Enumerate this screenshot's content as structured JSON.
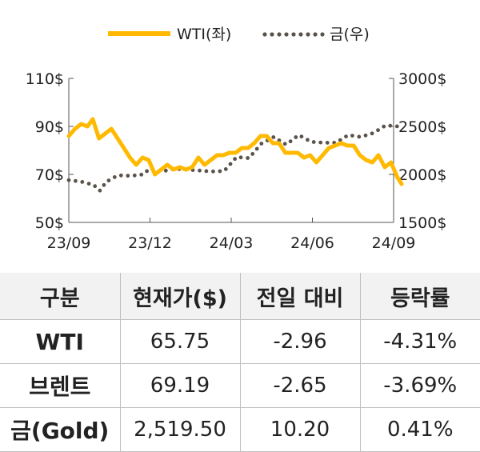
{
  "chart_data": {
    "type": "line",
    "x_ticks": [
      "23/09",
      "23/12",
      "24/03",
      "24/06",
      "24/09"
    ],
    "y_left_ticks": [
      "110$",
      "90$",
      "70$",
      "50$"
    ],
    "y_right_ticks": [
      "3000$",
      "2500$",
      "2000$",
      "1500$"
    ],
    "y_left_range": [
      50,
      110
    ],
    "y_right_range": [
      1500,
      3000
    ],
    "x_range": [
      "2023-09",
      "2024-09"
    ],
    "legend_position": "top-center",
    "series": [
      {
        "name": "WTI(좌)",
        "axis": "left",
        "style": "solid",
        "color": "#FFB900",
        "points": [
          [
            "2023-09-01",
            86
          ],
          [
            "2023-09-08",
            89
          ],
          [
            "2023-09-15",
            91
          ],
          [
            "2023-09-22",
            90
          ],
          [
            "2023-09-28",
            93
          ],
          [
            "2023-10-05",
            85
          ],
          [
            "2023-10-12",
            87
          ],
          [
            "2023-10-19",
            89
          ],
          [
            "2023-10-26",
            85
          ],
          [
            "2023-11-02",
            81
          ],
          [
            "2023-11-09",
            77
          ],
          [
            "2023-11-16",
            74
          ],
          [
            "2023-11-23",
            77
          ],
          [
            "2023-11-30",
            76
          ],
          [
            "2023-12-07",
            70
          ],
          [
            "2023-12-14",
            72
          ],
          [
            "2023-12-21",
            74
          ],
          [
            "2023-12-28",
            72
          ],
          [
            "2024-01-04",
            73
          ],
          [
            "2024-01-11",
            72
          ],
          [
            "2024-01-18",
            73
          ],
          [
            "2024-01-25",
            77
          ],
          [
            "2024-02-01",
            74
          ],
          [
            "2024-02-08",
            76
          ],
          [
            "2024-02-15",
            78
          ],
          [
            "2024-02-22",
            78
          ],
          [
            "2024-02-29",
            79
          ],
          [
            "2024-03-07",
            79
          ],
          [
            "2024-03-14",
            81
          ],
          [
            "2024-03-21",
            81
          ],
          [
            "2024-03-28",
            83
          ],
          [
            "2024-04-04",
            86
          ],
          [
            "2024-04-11",
            86
          ],
          [
            "2024-04-18",
            83
          ],
          [
            "2024-04-25",
            83
          ],
          [
            "2024-05-02",
            79
          ],
          [
            "2024-05-09",
            79
          ],
          [
            "2024-05-16",
            79
          ],
          [
            "2024-05-23",
            77
          ],
          [
            "2024-05-30",
            78
          ],
          [
            "2024-06-06",
            75
          ],
          [
            "2024-06-13",
            78
          ],
          [
            "2024-06-20",
            81
          ],
          [
            "2024-06-27",
            82
          ],
          [
            "2024-07-04",
            83
          ],
          [
            "2024-07-11",
            82
          ],
          [
            "2024-07-18",
            82
          ],
          [
            "2024-07-25",
            78
          ],
          [
            "2024-08-01",
            76
          ],
          [
            "2024-08-08",
            75
          ],
          [
            "2024-08-15",
            78
          ],
          [
            "2024-08-22",
            73
          ],
          [
            "2024-08-29",
            75
          ],
          [
            "2024-09-05",
            69
          ],
          [
            "2024-09-10",
            66
          ]
        ]
      },
      {
        "name": "금(우)",
        "axis": "right",
        "style": "dotted",
        "color": "#5a534b",
        "points": [
          [
            "2023-09-01",
            1940
          ],
          [
            "2023-09-15",
            1925
          ],
          [
            "2023-09-29",
            1890
          ],
          [
            "2023-10-06",
            1830
          ],
          [
            "2023-10-13",
            1920
          ],
          [
            "2023-10-20",
            1960
          ],
          [
            "2023-10-27",
            1990
          ],
          [
            "2023-11-10",
            1985
          ],
          [
            "2023-11-24",
            2000
          ],
          [
            "2023-12-01",
            2060
          ],
          [
            "2023-12-15",
            2030
          ],
          [
            "2023-12-29",
            2060
          ],
          [
            "2024-01-12",
            2050
          ],
          [
            "2024-01-26",
            2040
          ],
          [
            "2024-02-09",
            2030
          ],
          [
            "2024-02-23",
            2035
          ],
          [
            "2024-03-08",
            2180
          ],
          [
            "2024-03-22",
            2170
          ],
          [
            "2024-04-05",
            2320
          ],
          [
            "2024-04-19",
            2390
          ],
          [
            "2024-05-03",
            2310
          ],
          [
            "2024-05-17",
            2410
          ],
          [
            "2024-05-31",
            2340
          ],
          [
            "2024-06-14",
            2330
          ],
          [
            "2024-06-28",
            2330
          ],
          [
            "2024-07-12",
            2410
          ],
          [
            "2024-07-26",
            2390
          ],
          [
            "2024-08-09",
            2430
          ],
          [
            "2024-08-23",
            2510
          ],
          [
            "2024-09-06",
            2500
          ],
          [
            "2024-09-10",
            2519.5
          ]
        ]
      }
    ]
  },
  "table": {
    "headers": [
      "구분",
      "현재가($)",
      "전일 대비",
      "등락률"
    ],
    "rows": [
      {
        "name": "WTI",
        "price": "65.75",
        "change": "-2.96",
        "rate": "-4.31%"
      },
      {
        "name": "브렌트",
        "price": "69.19",
        "change": "-2.65",
        "rate": "-3.69%"
      },
      {
        "name": "금(Gold)",
        "price": "2,519.50",
        "change": "10.20",
        "rate": "0.41%"
      }
    ]
  }
}
